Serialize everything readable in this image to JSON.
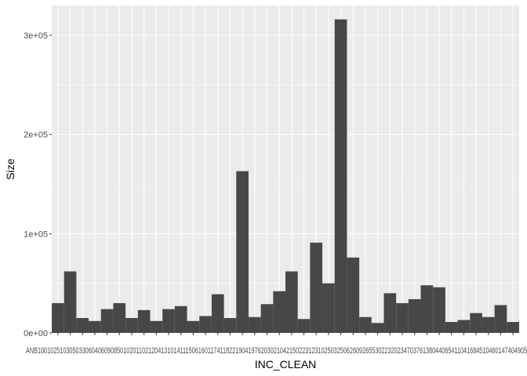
{
  "chart_data": {
    "type": "bar",
    "title": "",
    "xlabel": "INC_CLEAN",
    "ylabel": "Size",
    "ylim": [
      0,
      330000
    ],
    "yticks": [
      0,
      100000,
      200000,
      300000
    ],
    "ytick_labels": [
      "0e+00",
      "1e+05",
      "2e+05",
      "3e+05"
    ],
    "grid": true,
    "colors": {
      "panel": "#EBEBEB",
      "grid_major": "#FFFFFF",
      "bar": "#474747",
      "text": "#4D4D4D"
    },
    "x_tick_text_visible": "ANB10010251030503306040609085010201102120413101411150616011741182219041976203021042150223123102503250626092655302232023470376138044065411041684510460147404905",
    "values": [
      30000,
      62000,
      15000,
      12000,
      24000,
      30000,
      15000,
      23000,
      12000,
      24000,
      27000,
      12000,
      17000,
      39000,
      15000,
      163000,
      16000,
      29000,
      42000,
      62000,
      14000,
      91000,
      50000,
      316000,
      76000,
      16000,
      10000,
      40000,
      30000,
      34000,
      48000,
      46000,
      11000,
      13000,
      20000,
      16000,
      28000,
      11000
    ]
  }
}
